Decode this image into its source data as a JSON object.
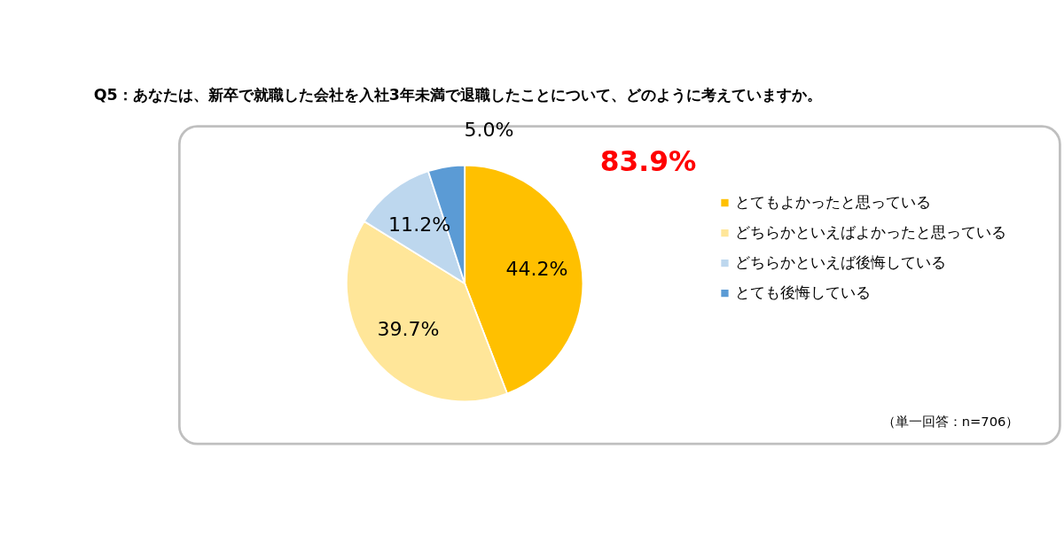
{
  "chart_data": {
    "type": "pie",
    "title": "Q5：あなたは、新卒で就職した会社を入社3年未満で退職したことについて、どのように考えていますか。",
    "categories": [
      "とてもよかったと思っている",
      "どちらかといえばよかったと思っている",
      "どちらかといえば後悔している",
      "とても後悔している"
    ],
    "values": [
      44.2,
      39.7,
      11.2,
      5.0
    ],
    "colors": [
      "#ffc000",
      "#ffe699",
      "#bdd7ee",
      "#5b9bd5"
    ],
    "value_labels": [
      "44.2%",
      "39.7%",
      "11.2%",
      "5.0%"
    ],
    "annotations": [
      "83.9%",
      "（単一回答：n=706）"
    ],
    "legend": "right"
  }
}
